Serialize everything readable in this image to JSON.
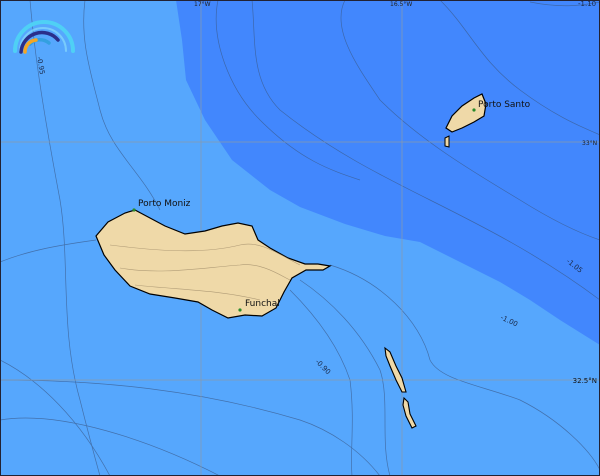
{
  "map": {
    "colors": {
      "shallow": "#56a7fd",
      "deep": "#4287fd",
      "land": "#efd9a8",
      "grid": "#8a9aaa",
      "contour": "#3a5a8a"
    },
    "graticule": {
      "longitudes": [
        "17°W",
        "16.5°W"
      ],
      "latitudes": [
        "33°N",
        "32.5°N"
      ]
    },
    "contour_labels": [
      "-0.95",
      "-1.10",
      "-1.05",
      "-1.00",
      "-0.90"
    ],
    "places": [
      {
        "name": "Porto Moniz"
      },
      {
        "name": "Porto Santo"
      },
      {
        "name": "Funchal"
      }
    ],
    "logo_icon": "rainbow-arcs-logo"
  }
}
